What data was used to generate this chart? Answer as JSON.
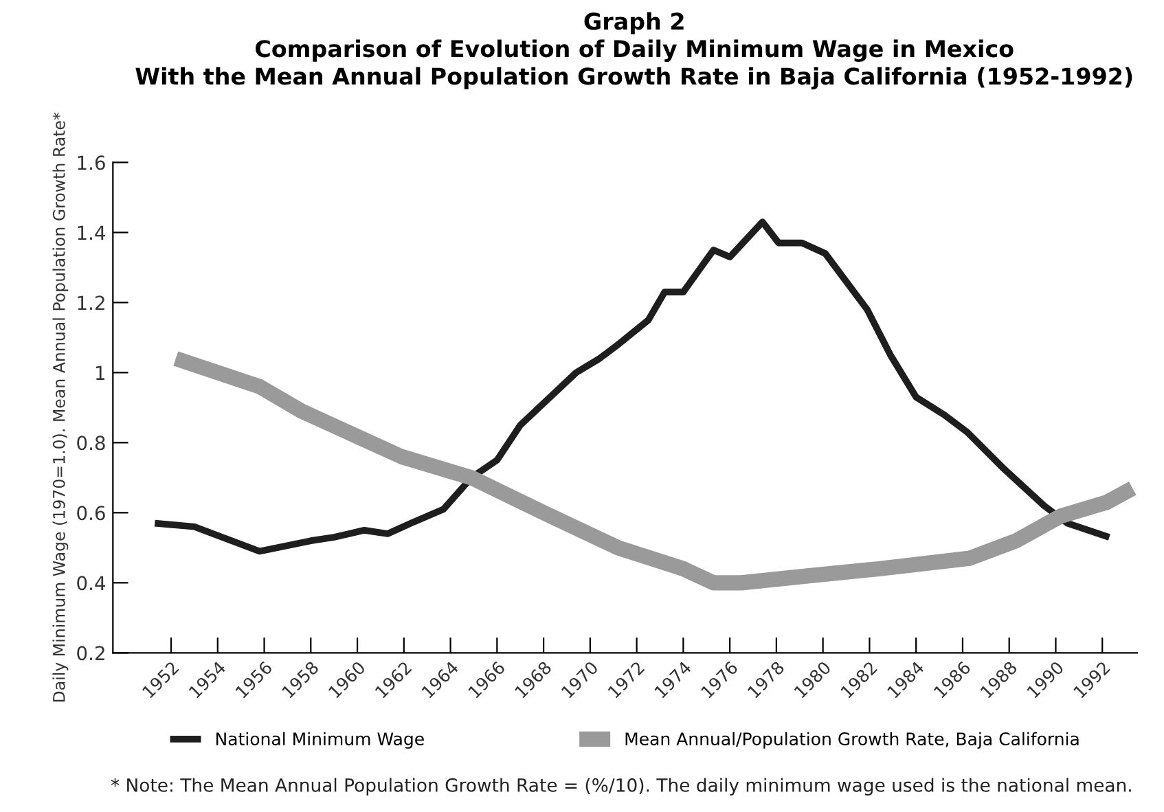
{
  "chart_data": {
    "type": "line",
    "title": "Graph 2\nComparison of Evolution of Daily Minimum Wage in Mexico\nWith the Mean Annual Population Growth Rate in Baja California (1952-1992)",
    "ylabel": "Daily Minimum Wage (1970=1.0). Mean Annual Population Growth Rate*",
    "series": [
      {
        "name": "National Minimum Wage",
        "color": "#1e1e1e",
        "x": [
          1951.3,
          1953,
          1955.8,
          1958,
          1959,
          1960.3,
          1961.3,
          1962.3,
          1963.7,
          1964.9,
          1966,
          1967,
          1969.4,
          1970.4,
          1971.2,
          1972.5,
          1973.2,
          1974,
          1975.3,
          1976,
          1976.7,
          1977.4,
          1978.1,
          1979.1,
          1980.1,
          1981.9,
          1982.9,
          1984,
          1985.2,
          1986.2,
          1987.7,
          1989.5,
          1990.5,
          1992.3
        ],
        "values": [
          0.57,
          0.56,
          0.49,
          0.52,
          0.53,
          0.55,
          0.54,
          0.57,
          0.61,
          0.7,
          0.75,
          0.85,
          1.0,
          1.04,
          1.08,
          1.15,
          1.23,
          1.23,
          1.35,
          1.33,
          1.38,
          1.43,
          1.37,
          1.37,
          1.34,
          1.18,
          1.05,
          0.93,
          0.88,
          0.83,
          0.73,
          0.62,
          0.57,
          0.53
        ]
      },
      {
        "name": "Mean Annual/Population Growth Rate, Baja California",
        "color": "#9a9a9a",
        "x": [
          1952.2,
          1955.8,
          1957.6,
          1961.9,
          1964.9,
          1968,
          1971.2,
          1974,
          1975.3,
          1976.5,
          1979.4,
          1982.4,
          1986.3,
          1988.3,
          1990.2,
          1992.2,
          1993.3
        ],
        "values": [
          1.04,
          0.96,
          0.89,
          0.76,
          0.7,
          0.6,
          0.5,
          0.44,
          0.4,
          0.4,
          0.42,
          0.44,
          0.47,
          0.52,
          0.59,
          0.63,
          0.67
        ]
      }
    ],
    "xlim": [
      1949.5,
      1993.5
    ],
    "xticks": [
      1952,
      1954,
      1956,
      1958,
      1960,
      1962,
      1964,
      1966,
      1968,
      1970,
      1972,
      1974,
      1976,
      1978,
      1980,
      1982,
      1984,
      1986,
      1988,
      1990,
      1992
    ],
    "ylim": [
      0.2,
      1.6
    ],
    "yticks": [
      0.2,
      0.4,
      0.6,
      0.8,
      1,
      1.2,
      1.4,
      1.6
    ],
    "grid": false,
    "legend": "bottom",
    "marker": "none",
    "line_style": "solid",
    "annotations": [
      "* Note: The Mean Annual Population Growth Rate = (%/10). The daily minimum wage used is the national mean."
    ]
  }
}
